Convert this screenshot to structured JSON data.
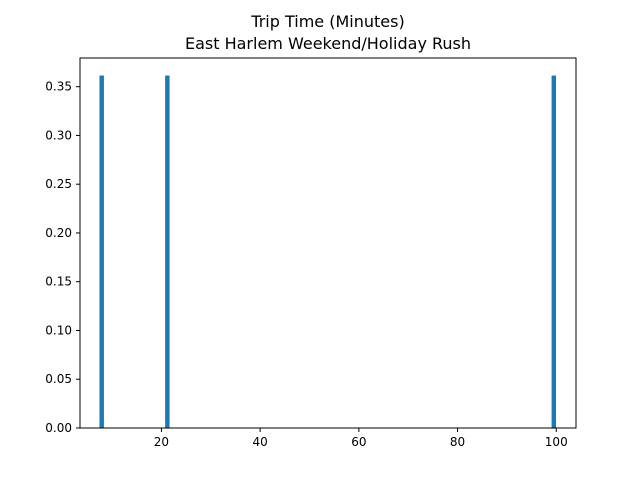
{
  "chart_data": {
    "type": "bar",
    "title": "Trip Time (Minutes)",
    "subtitle": "East Harlem Weekend/Holiday Rush",
    "xlabel": "",
    "ylabel": "",
    "xlim": [
      3.5,
      104.0
    ],
    "ylim": [
      0.0,
      0.3794
    ],
    "xticks": [
      20,
      40,
      60,
      80,
      100
    ],
    "yticks": [
      0.0,
      0.05,
      0.1,
      0.15,
      0.2,
      0.25,
      0.3,
      0.35
    ],
    "grid": false,
    "bar_width": 0.9,
    "x": [
      7.9,
      21.2,
      99.5
    ],
    "values": [
      0.3614,
      0.3614,
      0.3614
    ],
    "bar_color": "#1f77b4"
  }
}
